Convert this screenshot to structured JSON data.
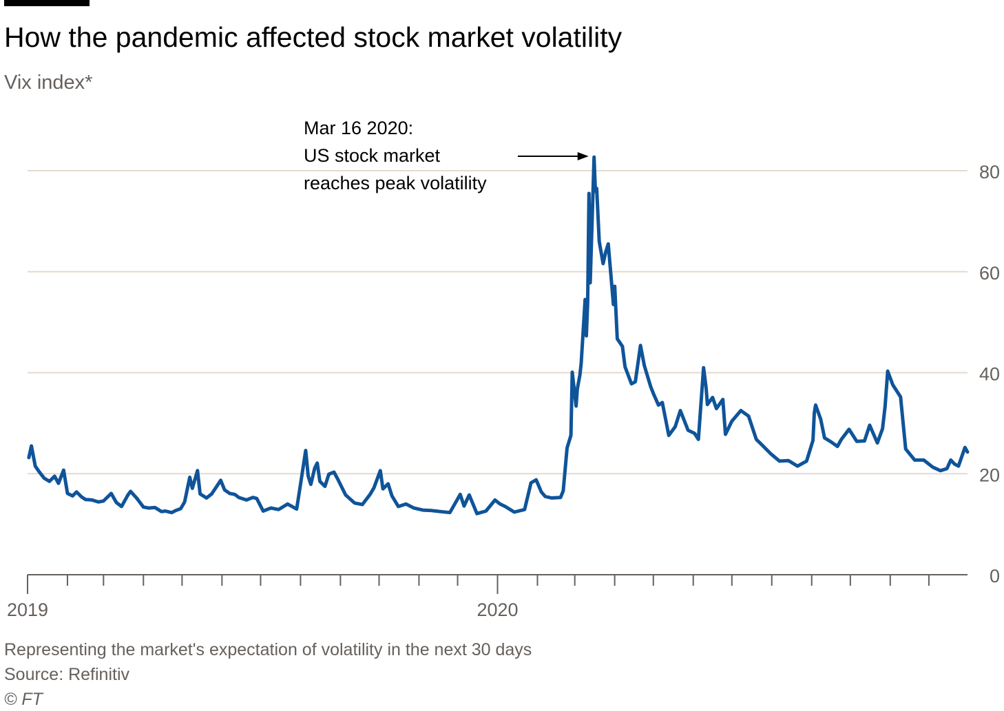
{
  "header": {
    "title": "How the pandemic affected stock market volatility",
    "subtitle": "Vix index*"
  },
  "footer": {
    "note": "Representing the market's expectation of volatility in the next 30 days",
    "source": "Source: Refinitiv",
    "credit": "© FT"
  },
  "colors": {
    "line": "#0f5499",
    "grid": "#e6d9ce",
    "tick_text": "#66605c",
    "axis": "#66605c",
    "annotation": "#000000"
  },
  "chart_data": {
    "type": "line",
    "title": "How the pandemic affected stock market volatility",
    "ylabel": "Vix index*",
    "xlim": [
      "2019-01-01",
      "2020-12-31"
    ],
    "ylim": [
      0,
      80
    ],
    "yticks": [
      0,
      20,
      40,
      60,
      80
    ],
    "ytick_labels": [
      "0",
      "20",
      "40",
      "60",
      "80"
    ],
    "y_axis_side": "right",
    "x_tick_labels": [
      {
        "date": "2019-01-01",
        "label": "2019"
      },
      {
        "date": "2020-01-01",
        "label": "2020"
      }
    ],
    "grid": "horizontal",
    "annotations": [
      {
        "date": "2020-03-16",
        "value": 82.7,
        "text": [
          "Mar 16 2020:",
          "US stock market",
          "reaches peak volatility"
        ]
      }
    ],
    "series": [
      {
        "dates": [
          "2019-01-02",
          "2019-01-04",
          "2019-01-07",
          "2019-01-10",
          "2019-01-14",
          "2019-01-18",
          "2019-01-22",
          "2019-01-25",
          "2019-01-29",
          "2019-02-01",
          "2019-02-05",
          "2019-02-08",
          "2019-02-12",
          "2019-02-15",
          "2019-02-20",
          "2019-02-25",
          "2019-03-01",
          "2019-03-07",
          "2019-03-11",
          "2019-03-15",
          "2019-03-20",
          "2019-03-22",
          "2019-03-27",
          "2019-04-01",
          "2019-04-05",
          "2019-04-10",
          "2019-04-15",
          "2019-04-18",
          "2019-04-23",
          "2019-04-26",
          "2019-04-30",
          "2019-05-03",
          "2019-05-07",
          "2019-05-09",
          "2019-05-13",
          "2019-05-15",
          "2019-05-20",
          "2019-05-24",
          "2019-05-29",
          "2019-05-31",
          "2019-06-03",
          "2019-06-07",
          "2019-06-11",
          "2019-06-14",
          "2019-06-20",
          "2019-06-25",
          "2019-06-28",
          "2019-07-03",
          "2019-07-09",
          "2019-07-15",
          "2019-07-22",
          "2019-07-29",
          "2019-08-01",
          "2019-08-05",
          "2019-08-07",
          "2019-08-09",
          "2019-08-12",
          "2019-08-14",
          "2019-08-16",
          "2019-08-20",
          "2019-08-23",
          "2019-08-27",
          "2019-08-30",
          "2019-09-05",
          "2019-09-12",
          "2019-09-18",
          "2019-09-24",
          "2019-09-27",
          "2019-10-02",
          "2019-10-04",
          "2019-10-08",
          "2019-10-11",
          "2019-10-16",
          "2019-10-22",
          "2019-10-28",
          "2019-11-04",
          "2019-11-11",
          "2019-11-18",
          "2019-11-25",
          "2019-12-03",
          "2019-12-06",
          "2019-12-10",
          "2019-12-16",
          "2019-12-23",
          "2019-12-30",
          "2020-01-03",
          "2020-01-07",
          "2020-01-14",
          "2020-01-22",
          "2020-01-27",
          "2020-01-31",
          "2020-02-04",
          "2020-02-07",
          "2020-02-12",
          "2020-02-19",
          "2020-02-21",
          "2020-02-24",
          "2020-02-27",
          "2020-02-28",
          "2020-03-02",
          "2020-03-03",
          "2020-03-05",
          "2020-03-06",
          "2020-03-09",
          "2020-03-10",
          "2020-03-11",
          "2020-03-12",
          "2020-03-13",
          "2020-03-16",
          "2020-03-17",
          "2020-03-18",
          "2020-03-20",
          "2020-03-23",
          "2020-03-25",
          "2020-03-27",
          "2020-03-31",
          "2020-04-01",
          "2020-04-03",
          "2020-04-07",
          "2020-04-09",
          "2020-04-14",
          "2020-04-17",
          "2020-04-21",
          "2020-04-24",
          "2020-04-29",
          "2020-05-01",
          "2020-05-05",
          "2020-05-08",
          "2020-05-13",
          "2020-05-18",
          "2020-05-22",
          "2020-05-28",
          "2020-06-02",
          "2020-06-05",
          "2020-06-09",
          "2020-06-11",
          "2020-06-12",
          "2020-06-16",
          "2020-06-19",
          "2020-06-24",
          "2020-06-26",
          "2020-07-01",
          "2020-07-08",
          "2020-07-14",
          "2020-07-20",
          "2020-07-24",
          "2020-07-31",
          "2020-08-07",
          "2020-08-14",
          "2020-08-21",
          "2020-08-28",
          "2020-09-02",
          "2020-09-03",
          "2020-09-04",
          "2020-09-08",
          "2020-09-11",
          "2020-09-16",
          "2020-09-21",
          "2020-09-24",
          "2020-09-30",
          "2020-10-06",
          "2020-10-12",
          "2020-10-16",
          "2020-10-22",
          "2020-10-26",
          "2020-10-28",
          "2020-10-30",
          "2020-11-03",
          "2020-11-09",
          "2020-11-13",
          "2020-11-20",
          "2020-11-27",
          "2020-12-04",
          "2020-12-10",
          "2020-12-15",
          "2020-12-18",
          "2020-12-21",
          "2020-12-24",
          "2020-12-29",
          "2020-12-31"
        ],
        "values": [
          23.2,
          25.5,
          21.5,
          20.4,
          19.1,
          18.5,
          19.5,
          18.1,
          20.7,
          16.1,
          15.6,
          16.4,
          15.4,
          14.9,
          14.8,
          14.4,
          14.6,
          16.1,
          14.3,
          13.5,
          15.8,
          16.5,
          15.1,
          13.4,
          13.2,
          13.3,
          12.5,
          12.6,
          12.3,
          12.7,
          13.1,
          14.4,
          19.3,
          17.1,
          20.6,
          16.0,
          15.2,
          16.0,
          17.9,
          18.7,
          16.8,
          16.1,
          15.9,
          15.3,
          14.8,
          15.3,
          15.1,
          12.6,
          13.2,
          12.9,
          14.0,
          13.0,
          17.9,
          24.6,
          19.5,
          17.9,
          21.1,
          22.1,
          18.5,
          17.5,
          19.9,
          20.3,
          18.9,
          15.8,
          14.2,
          13.9,
          15.9,
          17.2,
          20.6,
          17.0,
          18.0,
          15.6,
          13.5,
          14.0,
          13.2,
          12.8,
          12.7,
          12.5,
          12.3,
          15.9,
          13.6,
          15.8,
          12.1,
          12.6,
          14.8,
          14.0,
          13.5,
          12.4,
          12.9,
          18.2,
          18.8,
          16.4,
          15.5,
          15.2,
          15.3,
          16.6,
          25.1,
          27.6,
          40.1,
          33.4,
          36.8,
          39.6,
          41.9,
          54.5,
          47.3,
          53.9,
          75.5,
          57.8,
          82.7,
          75.9,
          76.5,
          66.0,
          61.6,
          63.9,
          65.5,
          53.5,
          57.1,
          46.7,
          45.2,
          41.2,
          37.8,
          38.2,
          45.4,
          41.4,
          37.2,
          35.9,
          33.6,
          34.1,
          27.6,
          29.3,
          32.5,
          28.6,
          28.0,
          26.8,
          41.0,
          37.0,
          33.7,
          35.1,
          32.9,
          34.7,
          27.8,
          30.4,
          32.5,
          31.4,
          26.8,
          25.8,
          24.0,
          22.5,
          22.6,
          21.5,
          22.5,
          26.6,
          32.0,
          33.6,
          30.8,
          27.1,
          26.3,
          25.4,
          26.8,
          28.8,
          26.4,
          26.5,
          29.6,
          26.1,
          28.9,
          33.3,
          40.3,
          37.6,
          35.2,
          24.9,
          22.7,
          22.7,
          21.3,
          20.6,
          21.0,
          22.7,
          21.9,
          21.5,
          25.2,
          24.3
        ]
      }
    ]
  }
}
